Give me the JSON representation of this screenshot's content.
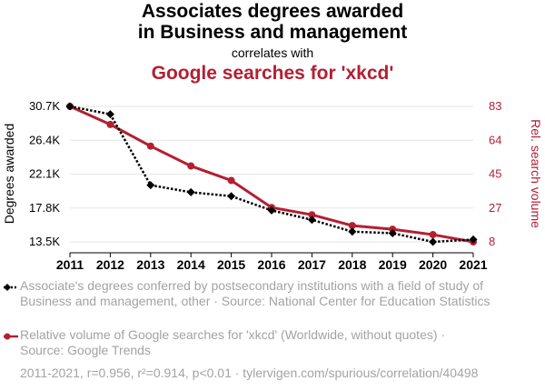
{
  "title_line1": "Associates degrees awarded",
  "title_line2": "in Business and management",
  "connector": "correlates with",
  "title_line3": "Google searches for 'xkcd'",
  "colors": {
    "series1": "#000000",
    "series2": "#b41f32",
    "muted": "#a3a3a3"
  },
  "legend": {
    "series1": "Associate's degrees conferred by postsecondary institutions with a field of study of Business and management, other · Source: National Center for Education Statistics",
    "series2": "Relative volume of Google searches for 'xkcd' (Worldwide, without quotes) · Source: Google Trends"
  },
  "footer": "2011-2021, r=0.956, r²=0.914, p<0.01 · tylervigen.com/spurious/correlation/40498",
  "chart_data": {
    "type": "line",
    "x": [
      2011,
      2012,
      2013,
      2014,
      2015,
      2016,
      2017,
      2018,
      2019,
      2020,
      2021
    ],
    "ylabel": "Degrees awarded",
    "y2label": "Rel. search volume",
    "ylim": [
      13500,
      30700
    ],
    "y2lim": [
      8,
      83
    ],
    "yticks": [
      "13.5K",
      "17.8K",
      "22.1K",
      "26.4K",
      "30.7K"
    ],
    "y2ticks": [
      "8",
      "27",
      "45",
      "64",
      "83"
    ],
    "series": [
      {
        "name": "Associate's degrees conferred by postsecondary institutions with a field of study of Business and management, other",
        "axis": "left",
        "style": "dotted",
        "marker": "diamond",
        "values": [
          30700,
          29700,
          20700,
          19800,
          19300,
          17500,
          16300,
          14800,
          14600,
          13500,
          13800
        ]
      },
      {
        "name": "Relative volume of Google searches for 'xkcd'",
        "axis": "right",
        "style": "solid",
        "marker": "circle",
        "values": [
          83,
          73,
          61,
          50,
          42,
          27,
          23,
          17,
          15,
          12,
          8
        ]
      }
    ]
  }
}
